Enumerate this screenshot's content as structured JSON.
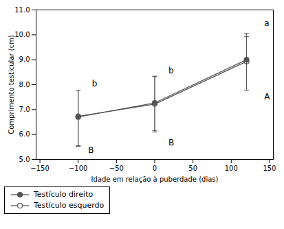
{
  "chart_data": {
    "type": "line",
    "xlabel": "Idade em relação à puberdade (dias)",
    "ylabel": "Comprimento testicular (cm)",
    "x": [
      -100,
      0,
      120
    ],
    "series": [
      {
        "name": "Testículo direito",
        "color": "#555555",
        "marker": "filled_circle",
        "values": [
          6.7,
          7.27,
          9.0
        ],
        "yerr_lower": [
          1.18,
          1.12,
          1.22
        ],
        "yerr_upper": [
          1.08,
          1.07,
          1.05
        ]
      },
      {
        "name": "Testículo esquerdo",
        "color": "#555555",
        "marker": "open_circle",
        "values": [
          6.73,
          7.22,
          8.93
        ],
        "yerr_lower": [
          1.18,
          1.12,
          1.15
        ],
        "yerr_upper": [
          1.05,
          1.1,
          1.0
        ]
      }
    ],
    "annotations": [
      {
        "text": "b",
        "x": -82,
        "y": 8.05
      },
      {
        "text": "B",
        "x": -87,
        "y": 5.38
      },
      {
        "text": "b",
        "x": 18,
        "y": 8.55
      },
      {
        "text": "B",
        "x": 18,
        "y": 5.68
      },
      {
        "text": "a",
        "x": 143,
        "y": 10.45
      },
      {
        "text": "A",
        "x": 143,
        "y": 7.52
      }
    ],
    "xlim": [
      -155,
      155
    ],
    "ylim": [
      5,
      11
    ],
    "xticks": [
      -150,
      -100,
      -50,
      0,
      50,
      100,
      150
    ],
    "yticks": [
      5,
      6,
      7,
      8,
      9,
      10,
      11
    ],
    "grid": false,
    "legend": "lower left"
  }
}
